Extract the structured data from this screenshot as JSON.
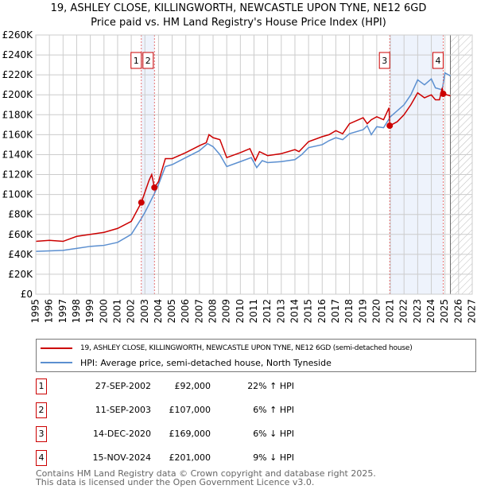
{
  "chart_data": {
    "type": "line",
    "title": "19, ASHLEY CLOSE, KILLINGWORTH, NEWCASTLE UPON TYNE, NE12 6GD",
    "subtitle": "Price paid vs. HM Land Registry's House Price Index (HPI)",
    "xlim": [
      1995,
      2027
    ],
    "ylim": [
      0,
      260000
    ],
    "x_ticks": [
      "1995",
      "1996",
      "1997",
      "1998",
      "1999",
      "2000",
      "2001",
      "2002",
      "2003",
      "2004",
      "2005",
      "2006",
      "2007",
      "2008",
      "2009",
      "2010",
      "2011",
      "2012",
      "2013",
      "2014",
      "2015",
      "2016",
      "2017",
      "2018",
      "2019",
      "2020",
      "2021",
      "2022",
      "2023",
      "2024",
      "2025",
      "2026",
      "2027"
    ],
    "y_ticks": [
      "£0",
      "£20K",
      "£40K",
      "£60K",
      "£80K",
      "£100K",
      "£120K",
      "£140K",
      "£160K",
      "£180K",
      "£200K",
      "£220K",
      "£240K",
      "£260K"
    ],
    "grid": true,
    "series": [
      {
        "name": "19, ASHLEY CLOSE, KILLINGWORTH, NEWCASTLE UPON TYNE, NE12 6GD (semi-detached house)",
        "color": "#cc0000",
        "x": [
          1995,
          1996,
          1997,
          1998,
          1999,
          2000,
          2001,
          2002,
          2002.74,
          2003.3,
          2003.5,
          2003.7,
          2004,
          2004.5,
          2005,
          2006,
          2007,
          2007.5,
          2007.7,
          2008,
          2008.5,
          2009,
          2010,
          2010.7,
          2011.1,
          2011.4,
          2012,
          2013,
          2014,
          2014.3,
          2015,
          2016,
          2016.5,
          2017,
          2017.5,
          2018,
          2019,
          2019.3,
          2019.6,
          2020,
          2020.5,
          2020.9,
          2020.95,
          2021.5,
          2022,
          2022.5,
          2023,
          2023.5,
          2024,
          2024.3,
          2024.6,
          2024.8,
          2024.87,
          2025.4
        ],
        "y": [
          53,
          54,
          53,
          58,
          60,
          62,
          66,
          73,
          92,
          114,
          120,
          107,
          113,
          136,
          136,
          142,
          149,
          152,
          160,
          157,
          155,
          137,
          142,
          146,
          134,
          143,
          139,
          141,
          145,
          143,
          153,
          158,
          160,
          164,
          161,
          171,
          177,
          171,
          175,
          178,
          175,
          187,
          169,
          173,
          180,
          190,
          202,
          197,
          200,
          195,
          195,
          207,
          201,
          199
        ]
      },
      {
        "name": "HPI: Average price, semi-detached house, North Tyneside",
        "color": "#5b8fd0",
        "x": [
          1995,
          1996,
          1997,
          1998,
          1999,
          2000,
          2001,
          2002,
          2002.7,
          2003,
          2003.7,
          2004,
          2004.5,
          2005,
          2006,
          2007,
          2007.6,
          2008,
          2008.5,
          2009,
          2010,
          2010.8,
          2011.2,
          2011.6,
          2012,
          2013,
          2014,
          2014.5,
          2015,
          2016,
          2016.5,
          2017,
          2017.5,
          2018,
          2019,
          2019.3,
          2019.6,
          2020,
          2020.5,
          2021,
          2022,
          2022.5,
          2023,
          2023.5,
          2024,
          2024.3,
          2024.8,
          2025,
          2025.4
        ],
        "y": [
          43,
          43.5,
          44,
          46,
          48,
          49,
          52,
          60,
          75,
          82,
          101,
          110,
          128,
          130,
          137,
          144,
          151,
          148,
          140,
          128,
          133,
          137,
          127,
          134,
          132,
          133,
          135,
          140,
          147,
          150,
          154,
          157,
          155,
          161,
          165,
          169,
          160,
          168,
          167,
          178,
          190,
          200,
          215,
          210,
          216,
          207,
          205,
          222,
          219
        ]
      }
    ],
    "y_unit": "thousands GBP",
    "sales": [
      {
        "n": "1",
        "x": 2002.74,
        "y": 92
      },
      {
        "n": "2",
        "x": 2003.7,
        "y": 107
      },
      {
        "n": "3",
        "x": 2020.95,
        "y": 169
      },
      {
        "n": "4",
        "x": 2024.87,
        "y": 201
      }
    ],
    "shaded": [
      [
        2002.74,
        2003.7
      ],
      [
        2020.95,
        2024.87
      ]
    ],
    "forecast_hatch_from": 2025.4
  },
  "legend": {
    "property": "19, ASHLEY CLOSE, KILLINGWORTH, NEWCASTLE UPON TYNE, NE12 6GD (semi-detached house)",
    "hpi": "HPI: Average price, semi-detached house, North Tyneside"
  },
  "transactions": [
    {
      "n": "1",
      "date": "27-SEP-2002",
      "price": "£92,000",
      "hpi": "22% ↑ HPI"
    },
    {
      "n": "2",
      "date": "11-SEP-2003",
      "price": "£107,000",
      "hpi": "6% ↑ HPI"
    },
    {
      "n": "3",
      "date": "14-DEC-2020",
      "price": "£169,000",
      "hpi": "6% ↓ HPI"
    },
    {
      "n": "4",
      "date": "15-NOV-2024",
      "price": "£201,000",
      "hpi": "9% ↓ HPI"
    }
  ],
  "footer": {
    "line1": "Contains HM Land Registry data © Crown copyright and database right 2025.",
    "line2": "This data is licensed under the Open Government Licence v3.0."
  }
}
